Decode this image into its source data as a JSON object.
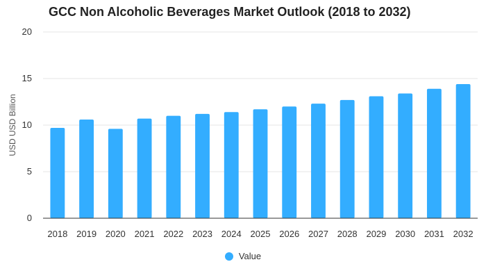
{
  "chart_data": {
    "type": "bar",
    "title": "GCC Non Alcoholic Beverages Market Outlook (2018 to 2032)",
    "xlabel": "",
    "ylabel": "USD USD Billion",
    "categories": [
      "2018",
      "2019",
      "2020",
      "2021",
      "2022",
      "2023",
      "2024",
      "2025",
      "2026",
      "2027",
      "2028",
      "2029",
      "2030",
      "2031",
      "2032"
    ],
    "series": [
      {
        "name": "Value",
        "values": [
          9.7,
          10.6,
          9.6,
          10.7,
          11.0,
          11.2,
          11.4,
          11.7,
          12.0,
          12.3,
          12.7,
          13.1,
          13.4,
          13.9,
          14.4
        ]
      }
    ],
    "ylim": [
      0,
      20
    ],
    "yticks": [
      "0",
      "5",
      "10",
      "15",
      "20"
    ],
    "grid": true,
    "legend_position": "bottom",
    "bar_color": "#33adff"
  }
}
